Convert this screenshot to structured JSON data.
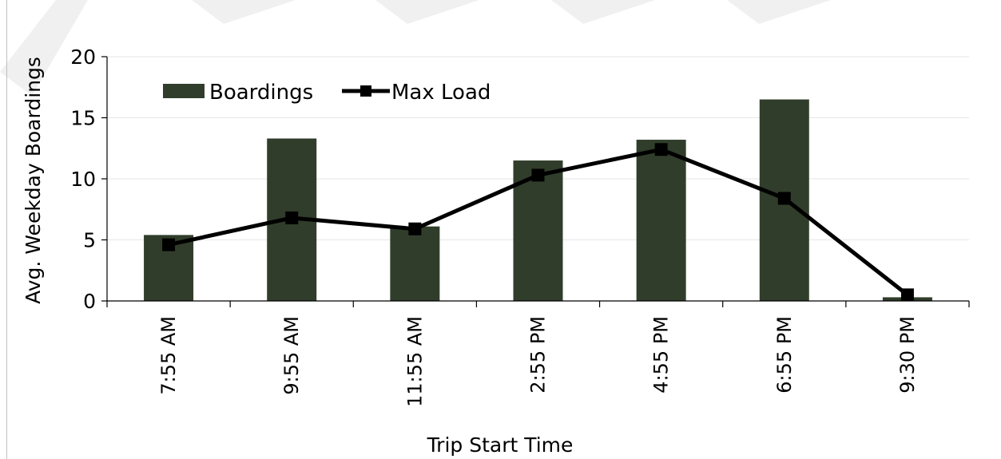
{
  "colors": {
    "bar": "#313d2b",
    "line": "#000000",
    "grid": "#e6e6e6",
    "axis": "#000000",
    "frame": "#bfbfbf",
    "watermark": "#f0f0f0"
  },
  "chart_data": {
    "type": "bar",
    "title": "",
    "xlabel": "Trip Start Time",
    "ylabel": "Avg. Weekday Boardings",
    "ylim": [
      0,
      20
    ],
    "yticks": [
      "0",
      "5",
      "10",
      "15",
      "20"
    ],
    "grid": true,
    "legend_position": "top-left",
    "categories": [
      "7:55 AM",
      "9:55 AM",
      "11:55 AM",
      "2:55 PM",
      "4:55 PM",
      "6:55 PM",
      "9:30 PM"
    ],
    "series": [
      {
        "name": "Boardings",
        "kind": "bar",
        "values": [
          5.4,
          13.3,
          6.1,
          11.5,
          13.2,
          16.5,
          0.3
        ]
      },
      {
        "name": "Max Load",
        "kind": "line",
        "marker": "square",
        "values": [
          4.6,
          6.8,
          5.9,
          10.3,
          12.4,
          8.4,
          0.5
        ]
      }
    ]
  }
}
